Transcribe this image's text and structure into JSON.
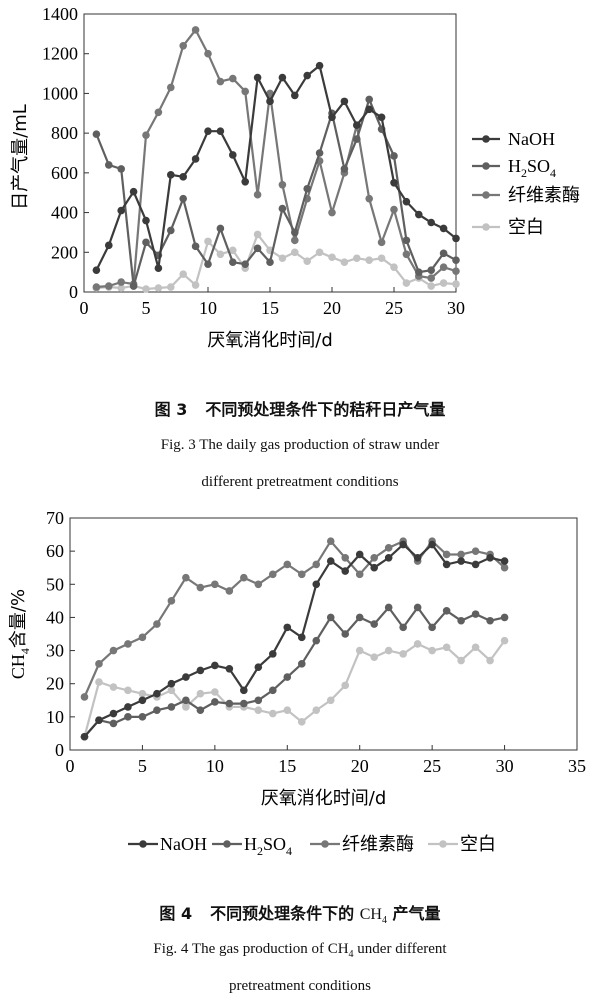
{
  "chart_data": [
    {
      "type": "line",
      "xlabel": "厌氧消化时间/d",
      "ylabel": "日产气量/mL",
      "xlim": [
        0,
        30
      ],
      "ylim": [
        0,
        1400
      ],
      "xticks": [
        0,
        5,
        10,
        15,
        20,
        25,
        30
      ],
      "yticks": [
        0,
        200,
        400,
        600,
        800,
        1000,
        1200,
        1400
      ],
      "grid": false,
      "legend_position": "right",
      "caption": {
        "number_zh": "图 3",
        "title_zh": "不同预处理条件下的秸秆日产气量",
        "line1_en": "Fig. 3   The daily gas production of straw under",
        "line2_en": "different pretreatment conditions"
      },
      "series": [
        {
          "name": "NaOH",
          "sub": "",
          "color": "#3b3b3b",
          "x": [
            1,
            2,
            3,
            4,
            5,
            6,
            7,
            8,
            9,
            10,
            11,
            12,
            13,
            14,
            15,
            16,
            17,
            18,
            19,
            20,
            21,
            22,
            23,
            24,
            25,
            26,
            27,
            28,
            29,
            30
          ],
          "values": [
            110,
            235,
            410,
            505,
            360,
            120,
            590,
            580,
            670,
            810,
            810,
            690,
            555,
            1080,
            960,
            1080,
            990,
            1090,
            1140,
            880,
            960,
            840,
            920,
            880,
            550,
            455,
            390,
            350,
            320,
            270
          ]
        },
        {
          "name": "H",
          "sub": "2",
          "suffix": "SO",
          "sub2": "4",
          "color": "#5f5f5f",
          "x": [
            1,
            2,
            3,
            4,
            5,
            6,
            7,
            8,
            9,
            10,
            11,
            12,
            13,
            14,
            15,
            16,
            17,
            18,
            19,
            20,
            21,
            22,
            23,
            24,
            25,
            26,
            27,
            28,
            29,
            30
          ],
          "values": [
            795,
            640,
            620,
            30,
            250,
            185,
            310,
            470,
            230,
            140,
            320,
            150,
            140,
            220,
            150,
            420,
            300,
            520,
            700,
            900,
            620,
            770,
            970,
            820,
            685,
            260,
            100,
            110,
            195,
            160
          ]
        },
        {
          "name": "纤维素酶",
          "sub": "",
          "color": "#777777",
          "x": [
            1,
            2,
            3,
            4,
            5,
            6,
            7,
            8,
            9,
            10,
            11,
            12,
            13,
            14,
            15,
            16,
            17,
            18,
            19,
            20,
            21,
            22,
            23,
            24,
            25,
            26,
            27,
            28,
            29,
            30
          ],
          "values": [
            25,
            30,
            50,
            40,
            790,
            905,
            1030,
            1240,
            1320,
            1200,
            1060,
            1075,
            1010,
            490,
            1000,
            540,
            260,
            470,
            660,
            400,
            600,
            840,
            470,
            250,
            415,
            190,
            80,
            70,
            125,
            105
          ]
        },
        {
          "name": "空白",
          "sub": "",
          "color": "#c2c2c2",
          "x": [
            1,
            2,
            3,
            4,
            5,
            6,
            7,
            8,
            9,
            10,
            11,
            12,
            13,
            14,
            15,
            16,
            17,
            18,
            19,
            20,
            21,
            22,
            23,
            24,
            25,
            26,
            27,
            28,
            29,
            30
          ],
          "values": [
            20,
            25,
            20,
            30,
            15,
            20,
            25,
            90,
            35,
            255,
            190,
            210,
            120,
            290,
            210,
            170,
            200,
            155,
            200,
            175,
            150,
            170,
            160,
            170,
            125,
            45,
            70,
            30,
            45,
            40
          ]
        }
      ]
    },
    {
      "type": "line",
      "xlabel": "厌氧消化时间/d",
      "ylabel_main": "CH",
      "ylabel_sub": "4",
      "ylabel_rest": "含量/%",
      "xlim": [
        0,
        35
      ],
      "ylim": [
        0,
        70
      ],
      "xticks": [
        0,
        5,
        10,
        15,
        20,
        25,
        30,
        35
      ],
      "yticks": [
        0,
        10,
        20,
        30,
        40,
        50,
        60,
        70
      ],
      "grid": false,
      "legend_position": "bottom",
      "caption": {
        "number_zh": "图 4",
        "title_zh_pre": "不同预处理条件下的",
        "title_ch": "CH",
        "title_sub": "4",
        "title_zh_post": "产气量",
        "line1_en_pre": "Fig. 4   The gas production of CH",
        "line1_en_sub": "4",
        "line1_en_post": " under different",
        "line2_en": "pretreatment conditions"
      },
      "series": [
        {
          "name": "NaOH",
          "color": "#3b3b3b",
          "x": [
            1,
            2,
            3,
            4,
            5,
            6,
            7,
            8,
            9,
            10,
            11,
            12,
            13,
            14,
            15,
            16,
            17,
            18,
            19,
            20,
            21,
            22,
            23,
            24,
            25,
            26,
            27,
            28,
            29,
            30
          ],
          "values": [
            4,
            9,
            11,
            13,
            15,
            17,
            20,
            22,
            24,
            25.5,
            24.5,
            18,
            25,
            29,
            37,
            34,
            50,
            57,
            54,
            59,
            55,
            58,
            62,
            58,
            62,
            56,
            57,
            56,
            58,
            57
          ]
        },
        {
          "name": "H2SO4",
          "color": "#5f5f5f",
          "x": [
            1,
            2,
            3,
            4,
            5,
            6,
            7,
            8,
            9,
            10,
            11,
            12,
            13,
            14,
            15,
            16,
            17,
            18,
            19,
            20,
            21,
            22,
            23,
            24,
            25,
            26,
            27,
            28,
            29,
            30
          ],
          "values": [
            4,
            9,
            8,
            10,
            10,
            12,
            13,
            15,
            12,
            14.5,
            14,
            14,
            15,
            18,
            22,
            26,
            33,
            40,
            35,
            40,
            38,
            43,
            37,
            43,
            37,
            42,
            39,
            41,
            39,
            40
          ]
        },
        {
          "name": "纤维素酶",
          "color": "#777777",
          "x": [
            1,
            2,
            3,
            4,
            5,
            6,
            7,
            8,
            9,
            10,
            11,
            12,
            13,
            14,
            15,
            16,
            17,
            18,
            19,
            20,
            21,
            22,
            23,
            24,
            25,
            26,
            27,
            28,
            29,
            30
          ],
          "values": [
            16,
            26,
            30,
            32,
            34,
            38,
            45,
            52,
            49,
            50,
            48,
            52,
            50,
            53,
            56,
            53,
            56,
            63,
            58,
            53,
            58,
            61,
            63,
            57,
            63,
            59,
            59,
            60,
            59,
            55
          ]
        },
        {
          "name": "空白",
          "color": "#c2c2c2",
          "x": [
            1,
            2,
            3,
            4,
            5,
            6,
            7,
            8,
            9,
            10,
            11,
            12,
            13,
            14,
            15,
            16,
            17,
            18,
            19,
            20,
            21,
            22,
            23,
            24,
            25,
            26,
            27,
            28,
            29,
            30
          ],
          "values": [
            4,
            20.5,
            19,
            18,
            17,
            16,
            18,
            13,
            17,
            17.5,
            13,
            13,
            12,
            11,
            12,
            8.5,
            12,
            15,
            19.5,
            30,
            28,
            30,
            29,
            32,
            30,
            31,
            27,
            31,
            27,
            33
          ]
        }
      ]
    }
  ]
}
